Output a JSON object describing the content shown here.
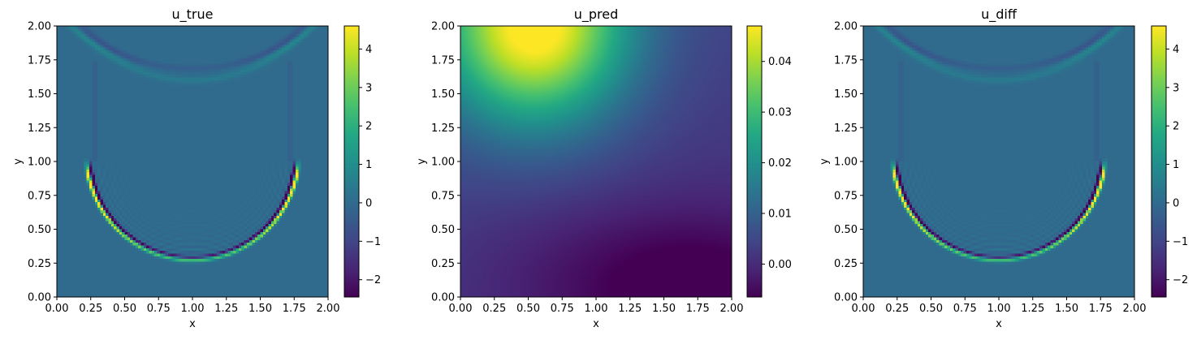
{
  "chart_data": [
    {
      "type": "heatmap",
      "title": "u_true",
      "xlabel": "x",
      "ylabel": "y",
      "xlim": [
        0,
        2
      ],
      "ylim": [
        0,
        2
      ],
      "xticks": [
        "0.00",
        "0.25",
        "0.50",
        "0.75",
        "1.00",
        "1.25",
        "1.50",
        "1.75",
        "2.00"
      ],
      "yticks": [
        "0.00",
        "0.25",
        "0.50",
        "0.75",
        "1.00",
        "1.25",
        "1.50",
        "1.75",
        "2.00"
      ],
      "colormap": "viridis",
      "colorbar": {
        "min": -2.45,
        "max": 4.6,
        "ticks": [
          -2,
          -1,
          0,
          1,
          2,
          3,
          4
        ],
        "tick_labels": [
          "−2",
          "−1",
          "0",
          "1",
          "2",
          "3",
          "4"
        ]
      },
      "field": "wavefront"
    },
    {
      "type": "heatmap",
      "title": "u_pred",
      "xlabel": "x",
      "ylabel": "y",
      "xlim": [
        0,
        2
      ],
      "ylim": [
        0,
        2
      ],
      "xticks": [
        "0.00",
        "0.25",
        "0.50",
        "0.75",
        "1.00",
        "1.25",
        "1.50",
        "1.75",
        "2.00"
      ],
      "yticks": [
        "0.00",
        "0.25",
        "0.50",
        "0.75",
        "1.00",
        "1.25",
        "1.50",
        "1.75",
        "2.00"
      ],
      "colormap": "viridis",
      "colorbar": {
        "min": -0.0065,
        "max": 0.047,
        "ticks": [
          0.0,
          0.01,
          0.02,
          0.03,
          0.04
        ],
        "tick_labels": [
          "0.00",
          "0.01",
          "0.02",
          "0.03",
          "0.04"
        ]
      },
      "field": "smooth"
    },
    {
      "type": "heatmap",
      "title": "u_diff",
      "xlabel": "x",
      "ylabel": "y",
      "xlim": [
        0,
        2
      ],
      "ylim": [
        0,
        2
      ],
      "xticks": [
        "0.00",
        "0.25",
        "0.50",
        "0.75",
        "1.00",
        "1.25",
        "1.50",
        "1.75",
        "2.00"
      ],
      "yticks": [
        "0.00",
        "0.25",
        "0.50",
        "0.75",
        "1.00",
        "1.25",
        "1.50",
        "1.75",
        "2.00"
      ],
      "colormap": "viridis",
      "colorbar": {
        "min": -2.45,
        "max": 4.6,
        "ticks": [
          -2,
          -1,
          0,
          1,
          2,
          3,
          4
        ],
        "tick_labels": [
          "−2",
          "−1",
          "0",
          "1",
          "2",
          "3",
          "4"
        ]
      },
      "field": "wavefront"
    }
  ]
}
